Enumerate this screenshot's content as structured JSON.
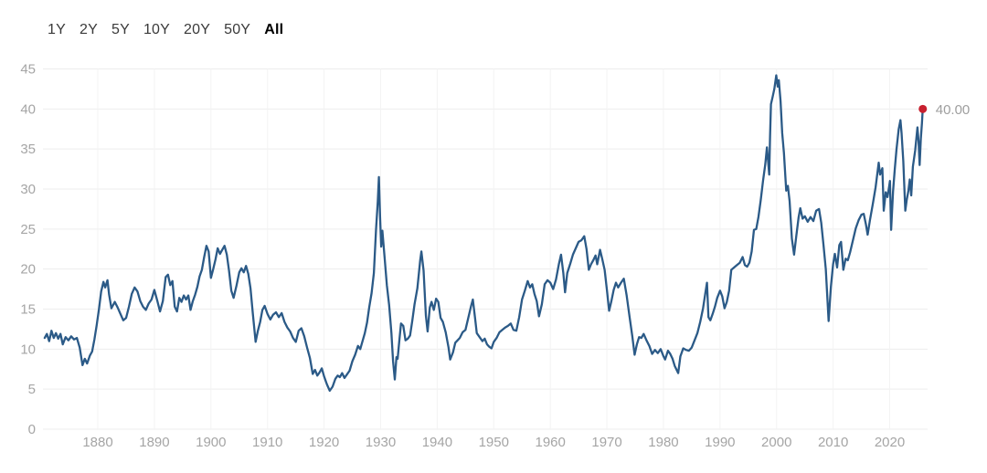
{
  "toolbar": {
    "ranges": [
      "1Y",
      "2Y",
      "5Y",
      "10Y",
      "20Y",
      "50Y",
      "All"
    ],
    "active": "All"
  },
  "chart_data": {
    "type": "line",
    "title": "",
    "xlabel": "",
    "ylabel": "",
    "grid": true,
    "legend": "none",
    "xlim": [
      1870.3,
      2026.7
    ],
    "ylim": [
      0,
      45
    ],
    "x_ticks": [
      1880,
      1890,
      1900,
      1910,
      1920,
      1930,
      1940,
      1950,
      1960,
      1970,
      1980,
      1990,
      2000,
      2010,
      2020
    ],
    "y_ticks": [
      0,
      5,
      10,
      15,
      20,
      25,
      30,
      35,
      40,
      45
    ],
    "line_color": "#2b5a87",
    "dot_color": "#c8202f",
    "grid_color_h": "#ededed",
    "grid_color_v": "#f3f3f3",
    "tick_color": "#a5a5a5",
    "latest_value": 40.0,
    "latest_value_label": "40.00",
    "points": [
      [
        1870.6,
        11.4
      ],
      [
        1871,
        11.9
      ],
      [
        1871.4,
        11.0
      ],
      [
        1871.8,
        12.3
      ],
      [
        1872.2,
        11.4
      ],
      [
        1872.6,
        12.0
      ],
      [
        1873,
        11.3
      ],
      [
        1873.4,
        11.9
      ],
      [
        1873.8,
        10.6
      ],
      [
        1874.3,
        11.5
      ],
      [
        1874.8,
        11.1
      ],
      [
        1875.3,
        11.6
      ],
      [
        1875.8,
        11.2
      ],
      [
        1876.3,
        11.4
      ],
      [
        1876.8,
        10.2
      ],
      [
        1877.3,
        8.0
      ],
      [
        1877.7,
        8.8
      ],
      [
        1878.1,
        8.2
      ],
      [
        1878.6,
        9.2
      ],
      [
        1879,
        9.7
      ],
      [
        1879.4,
        11.2
      ],
      [
        1879.8,
        13.0
      ],
      [
        1880.2,
        15.0
      ],
      [
        1880.6,
        17.2
      ],
      [
        1881,
        18.4
      ],
      [
        1881.3,
        17.7
      ],
      [
        1881.7,
        18.6
      ],
      [
        1882,
        16.8
      ],
      [
        1882.4,
        15.1
      ],
      [
        1883,
        15.9
      ],
      [
        1883.5,
        15.2
      ],
      [
        1884,
        14.4
      ],
      [
        1884.5,
        13.6
      ],
      [
        1885,
        13.9
      ],
      [
        1885.5,
        15.3
      ],
      [
        1886,
        16.9
      ],
      [
        1886.5,
        17.7
      ],
      [
        1887,
        17.2
      ],
      [
        1887.5,
        16.0
      ],
      [
        1888,
        15.3
      ],
      [
        1888.5,
        14.9
      ],
      [
        1889,
        15.7
      ],
      [
        1889.5,
        16.2
      ],
      [
        1890,
        17.4
      ],
      [
        1890.5,
        16.1
      ],
      [
        1891,
        14.7
      ],
      [
        1891.5,
        16.0
      ],
      [
        1892,
        19.0
      ],
      [
        1892.4,
        19.3
      ],
      [
        1892.8,
        18.0
      ],
      [
        1893.2,
        18.5
      ],
      [
        1893.6,
        15.3
      ],
      [
        1894,
        14.7
      ],
      [
        1894.4,
        16.4
      ],
      [
        1894.8,
        15.9
      ],
      [
        1895.2,
        16.7
      ],
      [
        1895.6,
        16.2
      ],
      [
        1896,
        16.7
      ],
      [
        1896.4,
        14.9
      ],
      [
        1896.8,
        16.0
      ],
      [
        1897.2,
        16.8
      ],
      [
        1897.6,
        17.8
      ],
      [
        1898,
        19.1
      ],
      [
        1898.4,
        19.9
      ],
      [
        1898.8,
        21.5
      ],
      [
        1899.2,
        22.9
      ],
      [
        1899.6,
        22.2
      ],
      [
        1900,
        18.9
      ],
      [
        1900.4,
        20.0
      ],
      [
        1900.8,
        21.2
      ],
      [
        1901.2,
        22.6
      ],
      [
        1901.6,
        21.9
      ],
      [
        1902,
        22.4
      ],
      [
        1902.4,
        22.9
      ],
      [
        1902.8,
        21.8
      ],
      [
        1903.2,
        19.8
      ],
      [
        1903.6,
        17.3
      ],
      [
        1904,
        16.4
      ],
      [
        1904.5,
        17.9
      ],
      [
        1905,
        19.6
      ],
      [
        1905.4,
        20.1
      ],
      [
        1905.8,
        19.6
      ],
      [
        1906.2,
        20.4
      ],
      [
        1906.6,
        19.4
      ],
      [
        1907,
        17.6
      ],
      [
        1907.4,
        14.5
      ],
      [
        1907.9,
        10.9
      ],
      [
        1908.3,
        12.3
      ],
      [
        1908.7,
        13.4
      ],
      [
        1909.1,
        14.9
      ],
      [
        1909.5,
        15.4
      ],
      [
        1910,
        14.4
      ],
      [
        1910.5,
        13.7
      ],
      [
        1911,
        14.3
      ],
      [
        1911.5,
        14.6
      ],
      [
        1912,
        14.0
      ],
      [
        1912.5,
        14.5
      ],
      [
        1913,
        13.4
      ],
      [
        1913.5,
        12.7
      ],
      [
        1914,
        12.2
      ],
      [
        1914.5,
        11.4
      ],
      [
        1915,
        10.9
      ],
      [
        1915.5,
        12.3
      ],
      [
        1916,
        12.6
      ],
      [
        1916.5,
        11.6
      ],
      [
        1917,
        10.2
      ],
      [
        1917.5,
        8.9
      ],
      [
        1918,
        6.9
      ],
      [
        1918.4,
        7.4
      ],
      [
        1918.8,
        6.7
      ],
      [
        1919.2,
        7.1
      ],
      [
        1919.6,
        7.6
      ],
      [
        1920,
        6.6
      ],
      [
        1920.5,
        5.6
      ],
      [
        1921,
        4.8
      ],
      [
        1921.5,
        5.3
      ],
      [
        1922,
        6.3
      ],
      [
        1922.4,
        6.7
      ],
      [
        1922.8,
        6.5
      ],
      [
        1923.2,
        7.0
      ],
      [
        1923.6,
        6.4
      ],
      [
        1924,
        6.8
      ],
      [
        1924.5,
        7.3
      ],
      [
        1925,
        8.5
      ],
      [
        1925.5,
        9.3
      ],
      [
        1926,
        10.4
      ],
      [
        1926.4,
        10.0
      ],
      [
        1926.8,
        11.0
      ],
      [
        1927.2,
        12.0
      ],
      [
        1927.6,
        13.3
      ],
      [
        1928,
        15.3
      ],
      [
        1928.4,
        17.0
      ],
      [
        1928.8,
        19.5
      ],
      [
        1929.2,
        25.0
      ],
      [
        1929.5,
        28.5
      ],
      [
        1929.7,
        31.5
      ],
      [
        1929.9,
        26.5
      ],
      [
        1930.1,
        22.8
      ],
      [
        1930.3,
        24.8
      ],
      [
        1930.7,
        21.5
      ],
      [
        1931.1,
        18.0
      ],
      [
        1931.5,
        15.5
      ],
      [
        1931.9,
        12.0
      ],
      [
        1932.2,
        8.5
      ],
      [
        1932.5,
        6.2
      ],
      [
        1932.8,
        9.0
      ],
      [
        1933,
        8.8
      ],
      [
        1933.3,
        11.0
      ],
      [
        1933.6,
        13.2
      ],
      [
        1934,
        12.9
      ],
      [
        1934.4,
        11.1
      ],
      [
        1934.8,
        11.3
      ],
      [
        1935.2,
        11.7
      ],
      [
        1935.6,
        13.6
      ],
      [
        1936,
        15.6
      ],
      [
        1936.5,
        17.6
      ],
      [
        1937,
        21.1
      ],
      [
        1937.2,
        22.2
      ],
      [
        1937.6,
        19.8
      ],
      [
        1938,
        14.2
      ],
      [
        1938.3,
        12.2
      ],
      [
        1938.7,
        15.2
      ],
      [
        1939,
        15.9
      ],
      [
        1939.4,
        14.9
      ],
      [
        1939.8,
        16.3
      ],
      [
        1940.2,
        15.9
      ],
      [
        1940.6,
        13.9
      ],
      [
        1941,
        13.4
      ],
      [
        1941.5,
        12.1
      ],
      [
        1942,
        10.2
      ],
      [
        1942.3,
        8.7
      ],
      [
        1942.8,
        9.6
      ],
      [
        1943.2,
        10.8
      ],
      [
        1943.6,
        11.1
      ],
      [
        1944,
        11.4
      ],
      [
        1944.5,
        12.1
      ],
      [
        1945,
        12.4
      ],
      [
        1945.5,
        13.9
      ],
      [
        1946,
        15.4
      ],
      [
        1946.3,
        16.2
      ],
      [
        1946.7,
        13.8
      ],
      [
        1947,
        12.0
      ],
      [
        1947.5,
        11.5
      ],
      [
        1948,
        11.0
      ],
      [
        1948.4,
        11.3
      ],
      [
        1948.8,
        10.6
      ],
      [
        1949.2,
        10.3
      ],
      [
        1949.6,
        10.1
      ],
      [
        1950,
        10.9
      ],
      [
        1950.5,
        11.4
      ],
      [
        1951,
        12.1
      ],
      [
        1951.5,
        12.4
      ],
      [
        1952,
        12.7
      ],
      [
        1952.5,
        12.9
      ],
      [
        1953,
        13.2
      ],
      [
        1953.5,
        12.4
      ],
      [
        1954,
        12.3
      ],
      [
        1954.5,
        14.0
      ],
      [
        1955,
        16.2
      ],
      [
        1955.5,
        17.3
      ],
      [
        1956,
        18.5
      ],
      [
        1956.4,
        17.7
      ],
      [
        1956.8,
        18.1
      ],
      [
        1957.2,
        16.9
      ],
      [
        1957.6,
        16.0
      ],
      [
        1958,
        14.1
      ],
      [
        1958.5,
        15.6
      ],
      [
        1959,
        18.1
      ],
      [
        1959.5,
        18.6
      ],
      [
        1960,
        18.3
      ],
      [
        1960.5,
        17.5
      ],
      [
        1961,
        18.7
      ],
      [
        1961.5,
        20.6
      ],
      [
        1961.9,
        21.8
      ],
      [
        1962.3,
        19.5
      ],
      [
        1962.6,
        17.1
      ],
      [
        1963,
        19.5
      ],
      [
        1963.5,
        20.6
      ],
      [
        1964,
        21.8
      ],
      [
        1964.5,
        22.6
      ],
      [
        1965,
        23.4
      ],
      [
        1965.5,
        23.6
      ],
      [
        1966,
        24.1
      ],
      [
        1966.4,
        22.5
      ],
      [
        1966.8,
        19.9
      ],
      [
        1967.2,
        20.6
      ],
      [
        1967.6,
        21.1
      ],
      [
        1968,
        21.7
      ],
      [
        1968.3,
        20.6
      ],
      [
        1968.8,
        22.4
      ],
      [
        1969.2,
        21.2
      ],
      [
        1969.6,
        19.9
      ],
      [
        1970,
        17.4
      ],
      [
        1970.4,
        14.8
      ],
      [
        1970.8,
        16.0
      ],
      [
        1971.2,
        17.4
      ],
      [
        1971.6,
        18.3
      ],
      [
        1972,
        17.7
      ],
      [
        1972.5,
        18.3
      ],
      [
        1973,
        18.8
      ],
      [
        1973.5,
        16.7
      ],
      [
        1974,
        14.1
      ],
      [
        1974.5,
        11.6
      ],
      [
        1974.9,
        9.3
      ],
      [
        1975.3,
        10.6
      ],
      [
        1975.7,
        11.5
      ],
      [
        1976.1,
        11.4
      ],
      [
        1976.5,
        11.9
      ],
      [
        1977,
        11.1
      ],
      [
        1977.5,
        10.4
      ],
      [
        1978,
        9.4
      ],
      [
        1978.5,
        9.9
      ],
      [
        1979,
        9.5
      ],
      [
        1979.5,
        10.0
      ],
      [
        1980,
        9.1
      ],
      [
        1980.3,
        8.7
      ],
      [
        1980.8,
        9.8
      ],
      [
        1981.2,
        9.4
      ],
      [
        1981.6,
        8.8
      ],
      [
        1982,
        7.9
      ],
      [
        1982.6,
        7.0
      ],
      [
        1983,
        9.1
      ],
      [
        1983.5,
        10.1
      ],
      [
        1984,
        9.9
      ],
      [
        1984.5,
        9.8
      ],
      [
        1985,
        10.2
      ],
      [
        1985.5,
        11.1
      ],
      [
        1986,
        12.0
      ],
      [
        1986.5,
        13.4
      ],
      [
        1987,
        15.1
      ],
      [
        1987.4,
        17.0
      ],
      [
        1987.7,
        18.3
      ],
      [
        1987.95,
        14.0
      ],
      [
        1988.3,
        13.6
      ],
      [
        1988.7,
        14.4
      ],
      [
        1989.1,
        15.3
      ],
      [
        1989.5,
        16.4
      ],
      [
        1990,
        17.3
      ],
      [
        1990.4,
        16.6
      ],
      [
        1990.8,
        15.1
      ],
      [
        1991.2,
        15.9
      ],
      [
        1991.6,
        17.3
      ],
      [
        1992,
        19.9
      ],
      [
        1992.5,
        20.2
      ],
      [
        1993,
        20.5
      ],
      [
        1993.5,
        20.8
      ],
      [
        1994,
        21.5
      ],
      [
        1994.4,
        20.5
      ],
      [
        1994.8,
        20.3
      ],
      [
        1995.2,
        20.8
      ],
      [
        1995.6,
        22.2
      ],
      [
        1996,
        24.9
      ],
      [
        1996.4,
        25.0
      ],
      [
        1996.8,
        26.5
      ],
      [
        1997.2,
        28.6
      ],
      [
        1997.6,
        31.0
      ],
      [
        1998,
        33.1
      ],
      [
        1998.3,
        35.2
      ],
      [
        1998.7,
        31.8
      ],
      [
        1998.85,
        36.5
      ],
      [
        1999,
        40.6
      ],
      [
        1999.3,
        41.5
      ],
      [
        1999.6,
        42.5
      ],
      [
        1999.95,
        44.2
      ],
      [
        2000.2,
        42.8
      ],
      [
        2000.4,
        43.6
      ],
      [
        2000.7,
        41.0
      ],
      [
        2001,
        37.0
      ],
      [
        2001.3,
        34.5
      ],
      [
        2001.7,
        29.8
      ],
      [
        2002,
        30.4
      ],
      [
        2002.3,
        28.5
      ],
      [
        2002.7,
        23.8
      ],
      [
        2003.1,
        21.8
      ],
      [
        2003.5,
        24.2
      ],
      [
        2003.9,
        26.5
      ],
      [
        2004.2,
        27.6
      ],
      [
        2004.6,
        26.3
      ],
      [
        2005,
        26.6
      ],
      [
        2005.5,
        25.9
      ],
      [
        2006,
        26.5
      ],
      [
        2006.5,
        26.0
      ],
      [
        2007,
        27.3
      ],
      [
        2007.5,
        27.5
      ],
      [
        2007.9,
        25.8
      ],
      [
        2008.3,
        23.0
      ],
      [
        2008.7,
        20.0
      ],
      [
        2009.2,
        13.5
      ],
      [
        2009.6,
        17.8
      ],
      [
        2010,
        20.6
      ],
      [
        2010.3,
        21.9
      ],
      [
        2010.7,
        20.2
      ],
      [
        2011.1,
        23.0
      ],
      [
        2011.4,
        23.4
      ],
      [
        2011.8,
        19.9
      ],
      [
        2012.2,
        21.3
      ],
      [
        2012.6,
        21.1
      ],
      [
        2013,
        22.1
      ],
      [
        2013.5,
        23.6
      ],
      [
        2014,
        25.1
      ],
      [
        2014.5,
        26.1
      ],
      [
        2015,
        26.8
      ],
      [
        2015.4,
        26.9
      ],
      [
        2015.8,
        25.6
      ],
      [
        2016.1,
        24.3
      ],
      [
        2016.5,
        26.1
      ],
      [
        2017,
        28.1
      ],
      [
        2017.5,
        30.2
      ],
      [
        2018.05,
        33.3
      ],
      [
        2018.3,
        31.8
      ],
      [
        2018.7,
        32.6
      ],
      [
        2018.95,
        27.3
      ],
      [
        2019.3,
        29.6
      ],
      [
        2019.6,
        29.0
      ],
      [
        2019.9,
        30.3
      ],
      [
        2020.05,
        31.0
      ],
      [
        2020.25,
        24.9
      ],
      [
        2020.6,
        29.7
      ],
      [
        2020.9,
        32.5
      ],
      [
        2021.2,
        35.0
      ],
      [
        2021.6,
        37.5
      ],
      [
        2021.9,
        38.6
      ],
      [
        2022.1,
        37.0
      ],
      [
        2022.4,
        33.5
      ],
      [
        2022.75,
        27.3
      ],
      [
        2023,
        28.6
      ],
      [
        2023.3,
        29.8
      ],
      [
        2023.55,
        31.2
      ],
      [
        2023.8,
        29.2
      ],
      [
        2024.1,
        32.8
      ],
      [
        2024.5,
        34.8
      ],
      [
        2024.9,
        37.7
      ],
      [
        2025.1,
        36.0
      ],
      [
        2025.3,
        33.0
      ],
      [
        2025.5,
        36.3
      ],
      [
        2025.7,
        38.2
      ],
      [
        2025.85,
        40.0
      ]
    ]
  }
}
